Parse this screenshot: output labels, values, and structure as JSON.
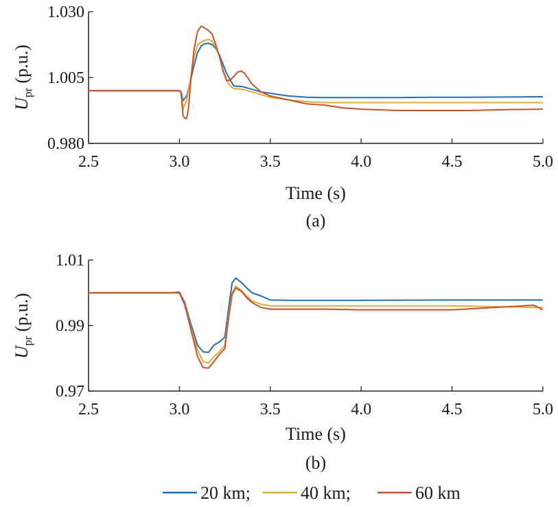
{
  "chart_data": [
    {
      "type": "line",
      "caption": "(a)",
      "xlabel": "Time (s)",
      "ylabel_main": "U",
      "ylabel_sub": "pr",
      "ylabel_unit": " (p.u.)",
      "xlim": [
        2.5,
        5.0
      ],
      "ylim": [
        0.98,
        1.03
      ],
      "xticks": [
        "2.5",
        "3.0",
        "3.5",
        "4.0",
        "4.5",
        "5.0"
      ],
      "yticks": [
        "0.980",
        "1.005",
        "1.030"
      ],
      "grid": false,
      "series": [
        {
          "name": "20 km",
          "color": "#1f6fb4",
          "x": [
            2.5,
            3.0,
            3.01,
            3.02,
            3.04,
            3.06,
            3.08,
            3.1,
            3.12,
            3.14,
            3.16,
            3.18,
            3.2,
            3.22,
            3.24,
            3.26,
            3.28,
            3.3,
            3.35,
            3.4,
            3.45,
            3.5,
            3.6,
            3.7,
            3.8,
            4.0,
            4.2,
            4.4,
            4.6,
            4.8,
            5.0
          ],
          "y": [
            1.0,
            1.0,
            0.9997,
            0.9962,
            0.998,
            1.0035,
            1.0095,
            1.0145,
            1.017,
            1.0178,
            1.018,
            1.0175,
            1.016,
            1.0135,
            1.01,
            1.0065,
            1.004,
            1.0018,
            1.0015,
            1.0005,
            0.9995,
            0.999,
            0.998,
            0.9975,
            0.9974,
            0.9974,
            0.9974,
            0.9975,
            0.9975,
            0.9976,
            0.9977
          ]
        },
        {
          "name": "40 km",
          "color": "#e0a93a",
          "x": [
            2.5,
            3.0,
            3.01,
            3.02,
            3.04,
            3.06,
            3.08,
            3.1,
            3.12,
            3.14,
            3.16,
            3.18,
            3.2,
            3.22,
            3.24,
            3.26,
            3.28,
            3.3,
            3.35,
            3.4,
            3.45,
            3.5,
            3.6,
            3.7,
            3.8,
            4.0,
            4.2,
            4.4,
            4.6,
            4.8,
            5.0
          ],
          "y": [
            1.0,
            1.0,
            0.9995,
            0.993,
            0.9965,
            1.004,
            1.0125,
            1.0175,
            1.0185,
            1.019,
            1.0195,
            1.0188,
            1.0165,
            1.013,
            1.008,
            1.004,
            1.0018,
            1.0008,
            1.0005,
            0.9995,
            0.9985,
            0.9975,
            0.9965,
            0.9958,
            0.9955,
            0.9955,
            0.9955,
            0.9955,
            0.9955,
            0.9955,
            0.9955
          ]
        },
        {
          "name": "60 km",
          "color": "#c8512a",
          "x": [
            2.5,
            3.0,
            3.01,
            3.02,
            3.03,
            3.04,
            3.05,
            3.06,
            3.08,
            3.1,
            3.12,
            3.14,
            3.16,
            3.18,
            3.2,
            3.22,
            3.24,
            3.26,
            3.28,
            3.3,
            3.32,
            3.34,
            3.36,
            3.38,
            3.4,
            3.45,
            3.5,
            3.6,
            3.7,
            3.8,
            3.9,
            4.0,
            4.2,
            4.4,
            4.6,
            4.8,
            5.0
          ],
          "y": [
            1.0,
            1.0,
            0.999,
            0.9905,
            0.9895,
            0.9895,
            0.993,
            1.002,
            1.0155,
            1.0225,
            1.0245,
            1.0238,
            1.0228,
            1.0215,
            1.0175,
            1.013,
            1.0075,
            1.0038,
            1.004,
            1.0055,
            1.007,
            1.0075,
            1.0065,
            1.0045,
            1.0025,
            0.9995,
            0.998,
            0.9965,
            0.995,
            0.9945,
            0.9935,
            0.993,
            0.9925,
            0.9925,
            0.9925,
            0.9928,
            0.993
          ]
        }
      ]
    },
    {
      "type": "line",
      "caption": "(b)",
      "xlabel": "Time (s)",
      "ylabel_main": "U",
      "ylabel_sub": "pr",
      "ylabel_unit": " (p.u.)",
      "xlim": [
        2.5,
        5.0
      ],
      "ylim": [
        0.97,
        1.01
      ],
      "xticks": [
        "2.5",
        "3.0",
        "3.5",
        "4.0",
        "4.5",
        "5.0"
      ],
      "yticks": [
        "0.97",
        "0.99",
        "1.01"
      ],
      "grid": false,
      "series": [
        {
          "name": "20 km",
          "color": "#1f6fb4",
          "x": [
            2.5,
            2.95,
            3.0,
            3.03,
            3.06,
            3.1,
            3.13,
            3.16,
            3.19,
            3.22,
            3.25,
            3.27,
            3.29,
            3.31,
            3.34,
            3.37,
            3.4,
            3.45,
            3.5,
            3.6,
            3.8,
            4.0,
            4.5,
            5.0
          ],
          "y": [
            1.0,
            1.0,
            1.0002,
            0.997,
            0.991,
            0.984,
            0.982,
            0.9818,
            0.984,
            0.985,
            0.9865,
            0.995,
            1.003,
            1.0045,
            1.0032,
            1.0015,
            1.0,
            0.999,
            0.9978,
            0.9977,
            0.9977,
            0.9977,
            0.9978,
            0.9978
          ]
        },
        {
          "name": "40 km",
          "color": "#e0a93a",
          "x": [
            2.5,
            2.95,
            3.0,
            3.03,
            3.06,
            3.1,
            3.13,
            3.16,
            3.19,
            3.22,
            3.25,
            3.27,
            3.29,
            3.31,
            3.34,
            3.37,
            3.4,
            3.45,
            3.5,
            3.6,
            3.8,
            4.0,
            4.5,
            5.0
          ],
          "y": [
            1.0,
            1.0,
            1.0,
            0.9965,
            0.99,
            0.9825,
            0.979,
            0.9785,
            0.9805,
            0.982,
            0.984,
            0.993,
            1.0,
            1.002,
            1.0008,
            0.999,
            0.9975,
            0.9965,
            0.996,
            0.996,
            0.996,
            0.996,
            0.996,
            0.9955
          ]
        },
        {
          "name": "60 km",
          "color": "#c8512a",
          "x": [
            2.5,
            2.95,
            3.0,
            3.03,
            3.06,
            3.1,
            3.13,
            3.16,
            3.19,
            3.22,
            3.25,
            3.27,
            3.29,
            3.31,
            3.34,
            3.37,
            3.4,
            3.45,
            3.5,
            3.6,
            3.8,
            4.0,
            4.5,
            4.95,
            5.0
          ],
          "y": [
            1.0,
            1.0,
            1.0,
            0.9962,
            0.9895,
            0.9805,
            0.9772,
            0.977,
            0.979,
            0.9812,
            0.983,
            0.992,
            0.9995,
            1.0015,
            1.0005,
            0.9985,
            0.997,
            0.9955,
            0.995,
            0.995,
            0.995,
            0.9948,
            0.9948,
            0.9962,
            0.9948
          ]
        }
      ]
    }
  ],
  "legend": {
    "position": "bottom-center",
    "items": [
      {
        "label": "20 km;",
        "color": "#1f6fb4"
      },
      {
        "label": "40 km;",
        "color": "#e0a93a"
      },
      {
        "label": "60 km",
        "color": "#c8512a"
      }
    ]
  }
}
